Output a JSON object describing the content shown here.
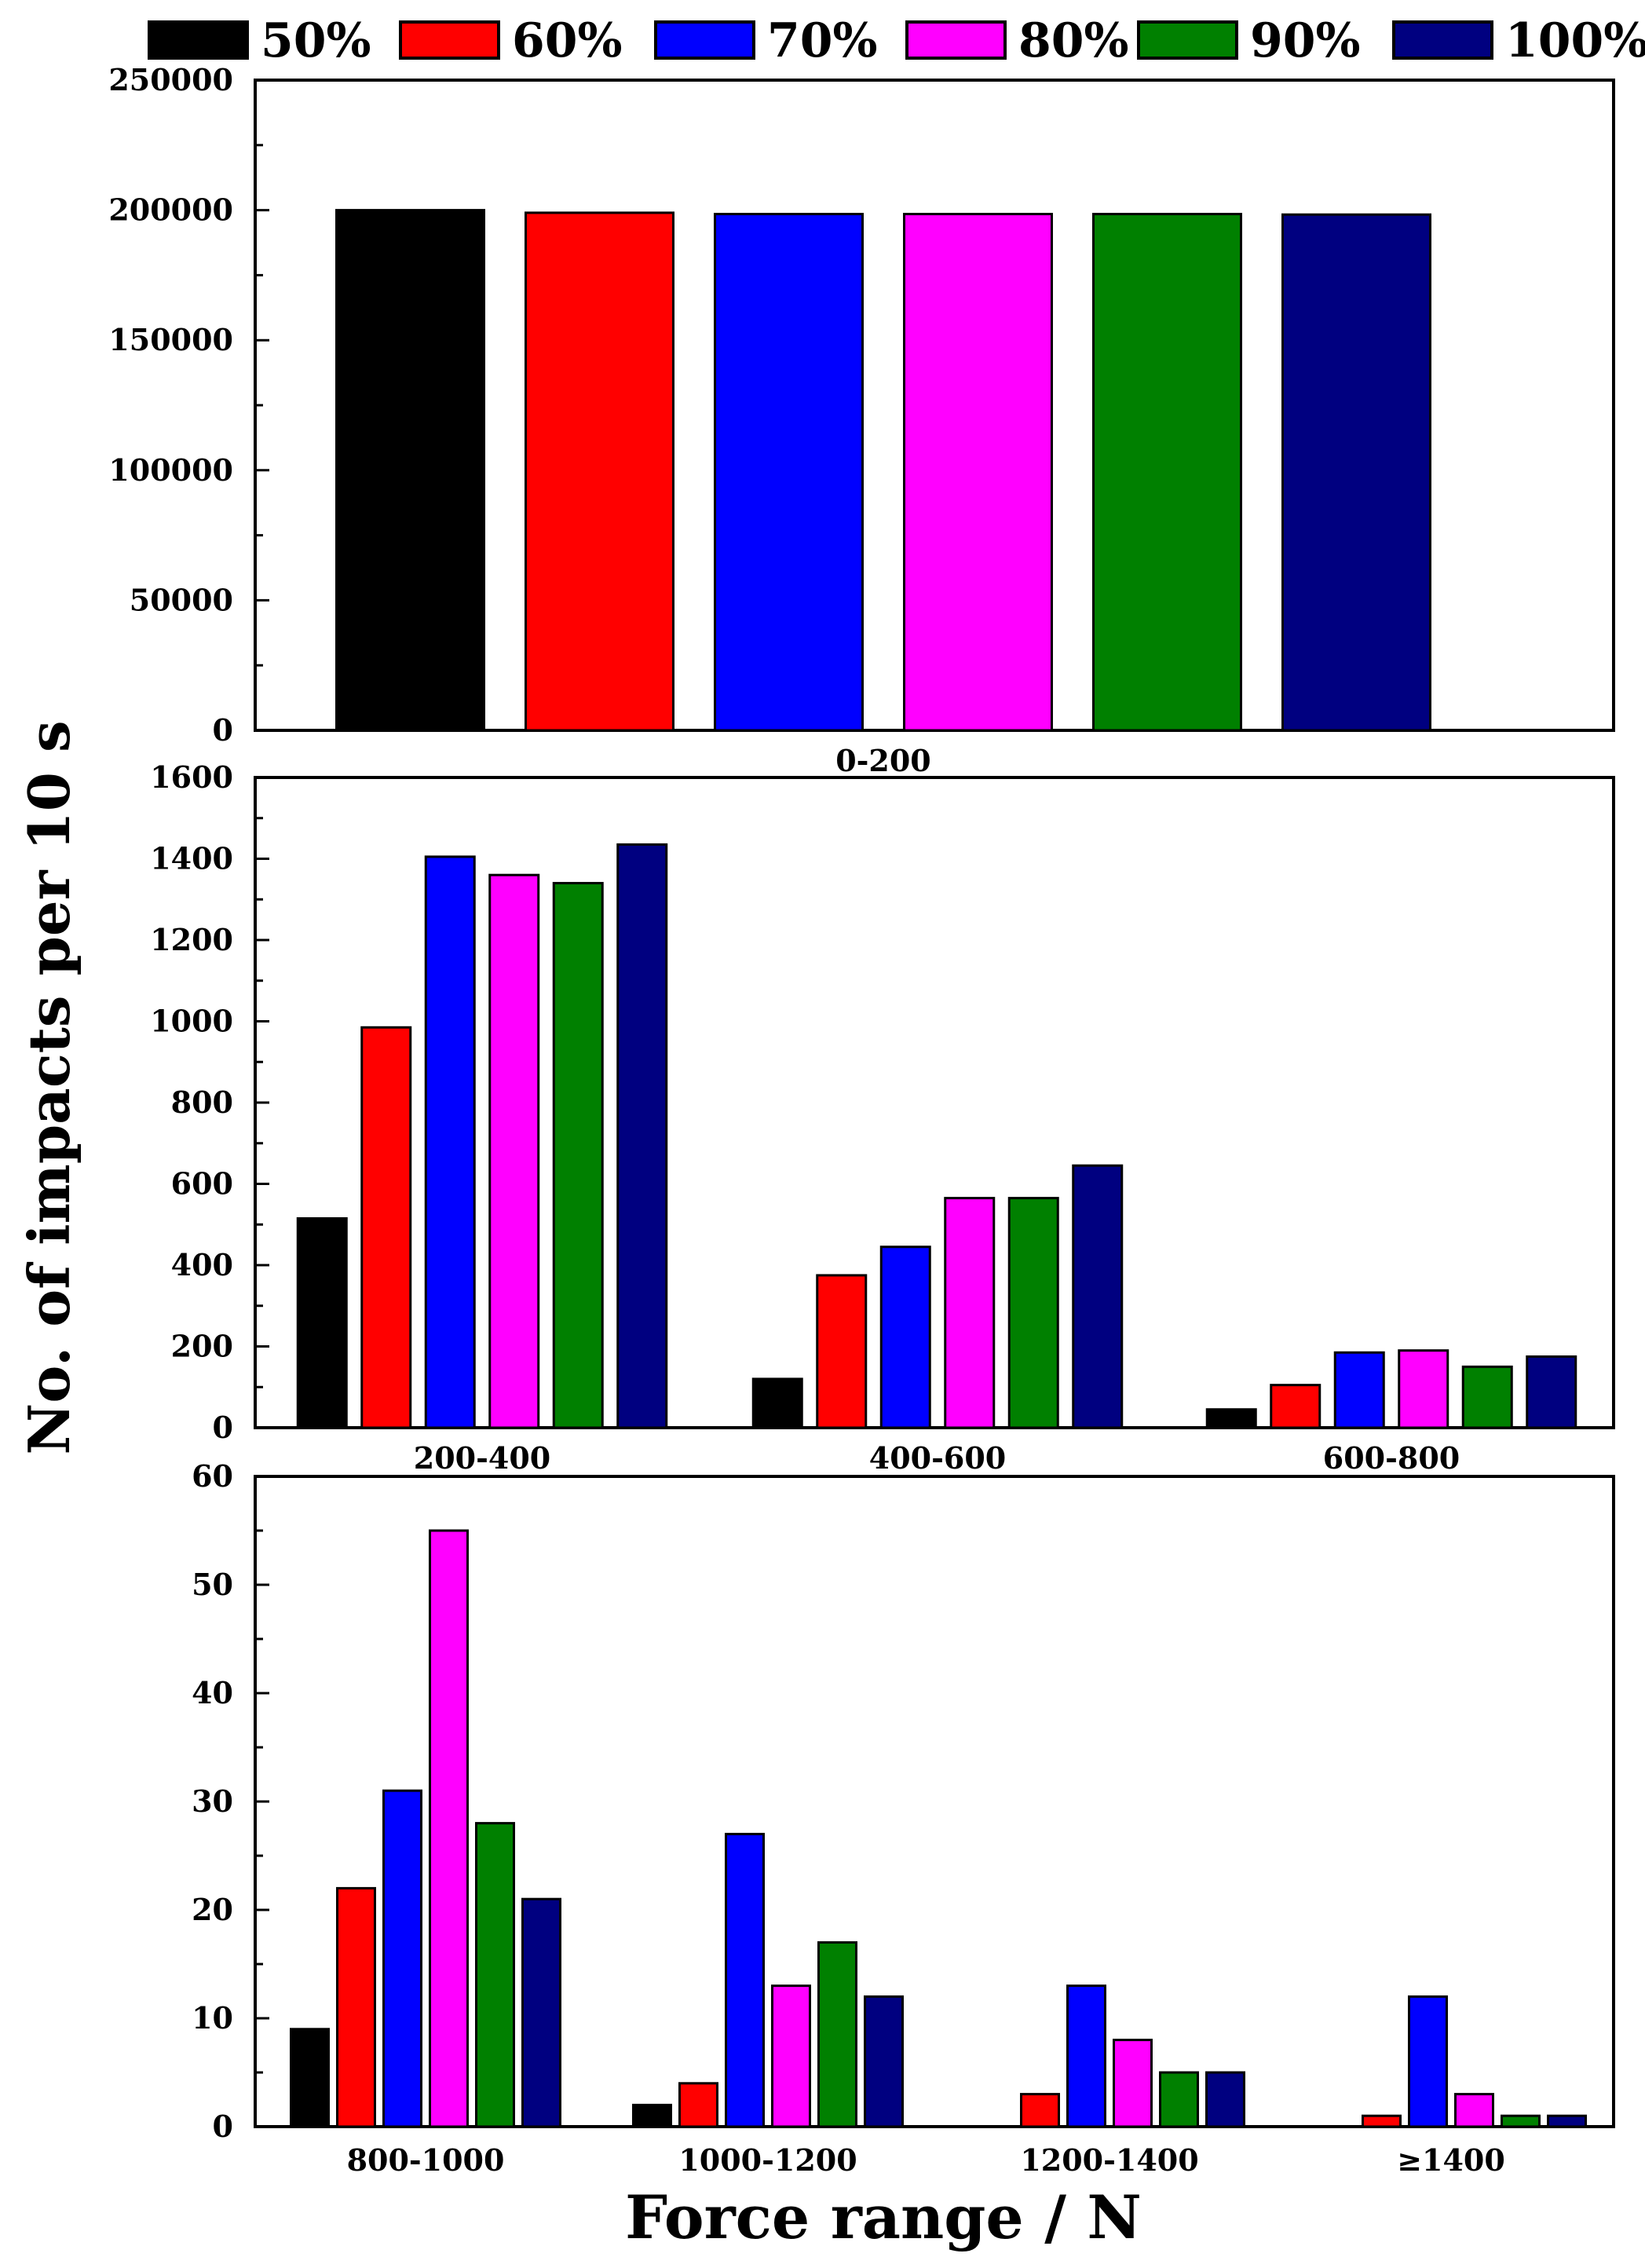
{
  "chart_data": {
    "type": "bar",
    "ylabel": "No. of impacts per 10 s",
    "xlabel": "Force range / N",
    "legend": {
      "placement": "top",
      "entries": [
        {
          "name": "50%",
          "color": "#000000"
        },
        {
          "name": "60%",
          "color": "#ff0000"
        },
        {
          "name": "70%",
          "color": "#0000ff"
        },
        {
          "name": "80%",
          "color": "#ff00ff"
        },
        {
          "name": "90%",
          "color": "#008000"
        },
        {
          "name": "100%",
          "color": "#000080"
        }
      ]
    },
    "panels": [
      {
        "id": "top",
        "ylim": [
          0,
          250000
        ],
        "yticks": [
          0,
          50000,
          100000,
          150000,
          200000,
          250000
        ],
        "categories": [
          "0-200"
        ],
        "series": [
          {
            "name": "50%",
            "values": [
              200000
            ]
          },
          {
            "name": "60%",
            "values": [
              199000
            ]
          },
          {
            "name": "70%",
            "values": [
              198500
            ]
          },
          {
            "name": "80%",
            "values": [
              198500
            ]
          },
          {
            "name": "90%",
            "values": [
              198500
            ]
          },
          {
            "name": "100%",
            "values": [
              198300
            ]
          }
        ]
      },
      {
        "id": "middle",
        "ylim": [
          0,
          1600
        ],
        "yticks": [
          0,
          200,
          400,
          600,
          800,
          1000,
          1200,
          1400,
          1600
        ],
        "categories": [
          "200-400",
          "400-600",
          "600-800"
        ],
        "series": [
          {
            "name": "50%",
            "values": [
              515,
              120,
              45
            ]
          },
          {
            "name": "60%",
            "values": [
              985,
              375,
              105
            ]
          },
          {
            "name": "70%",
            "values": [
              1405,
              445,
              185
            ]
          },
          {
            "name": "80%",
            "values": [
              1360,
              565,
              190
            ]
          },
          {
            "name": "90%",
            "values": [
              1340,
              565,
              150
            ]
          },
          {
            "name": "100%",
            "values": [
              1435,
              645,
              175
            ]
          }
        ]
      },
      {
        "id": "bottom",
        "ylim": [
          0,
          60
        ],
        "yticks": [
          0,
          10,
          20,
          30,
          40,
          50,
          60
        ],
        "categories": [
          "800-1000",
          "1000-1200",
          "1200-1400",
          "≥1400"
        ],
        "series": [
          {
            "name": "50%",
            "values": [
              9,
              2,
              0,
              0
            ]
          },
          {
            "name": "60%",
            "values": [
              22,
              4,
              3,
              1
            ]
          },
          {
            "name": "70%",
            "values": [
              31,
              27,
              13,
              12
            ]
          },
          {
            "name": "80%",
            "values": [
              55,
              13,
              8,
              3
            ]
          },
          {
            "name": "90%",
            "values": [
              28,
              17,
              5,
              1
            ]
          },
          {
            "name": "100%",
            "values": [
              21,
              12,
              5,
              1
            ]
          }
        ]
      }
    ]
  }
}
